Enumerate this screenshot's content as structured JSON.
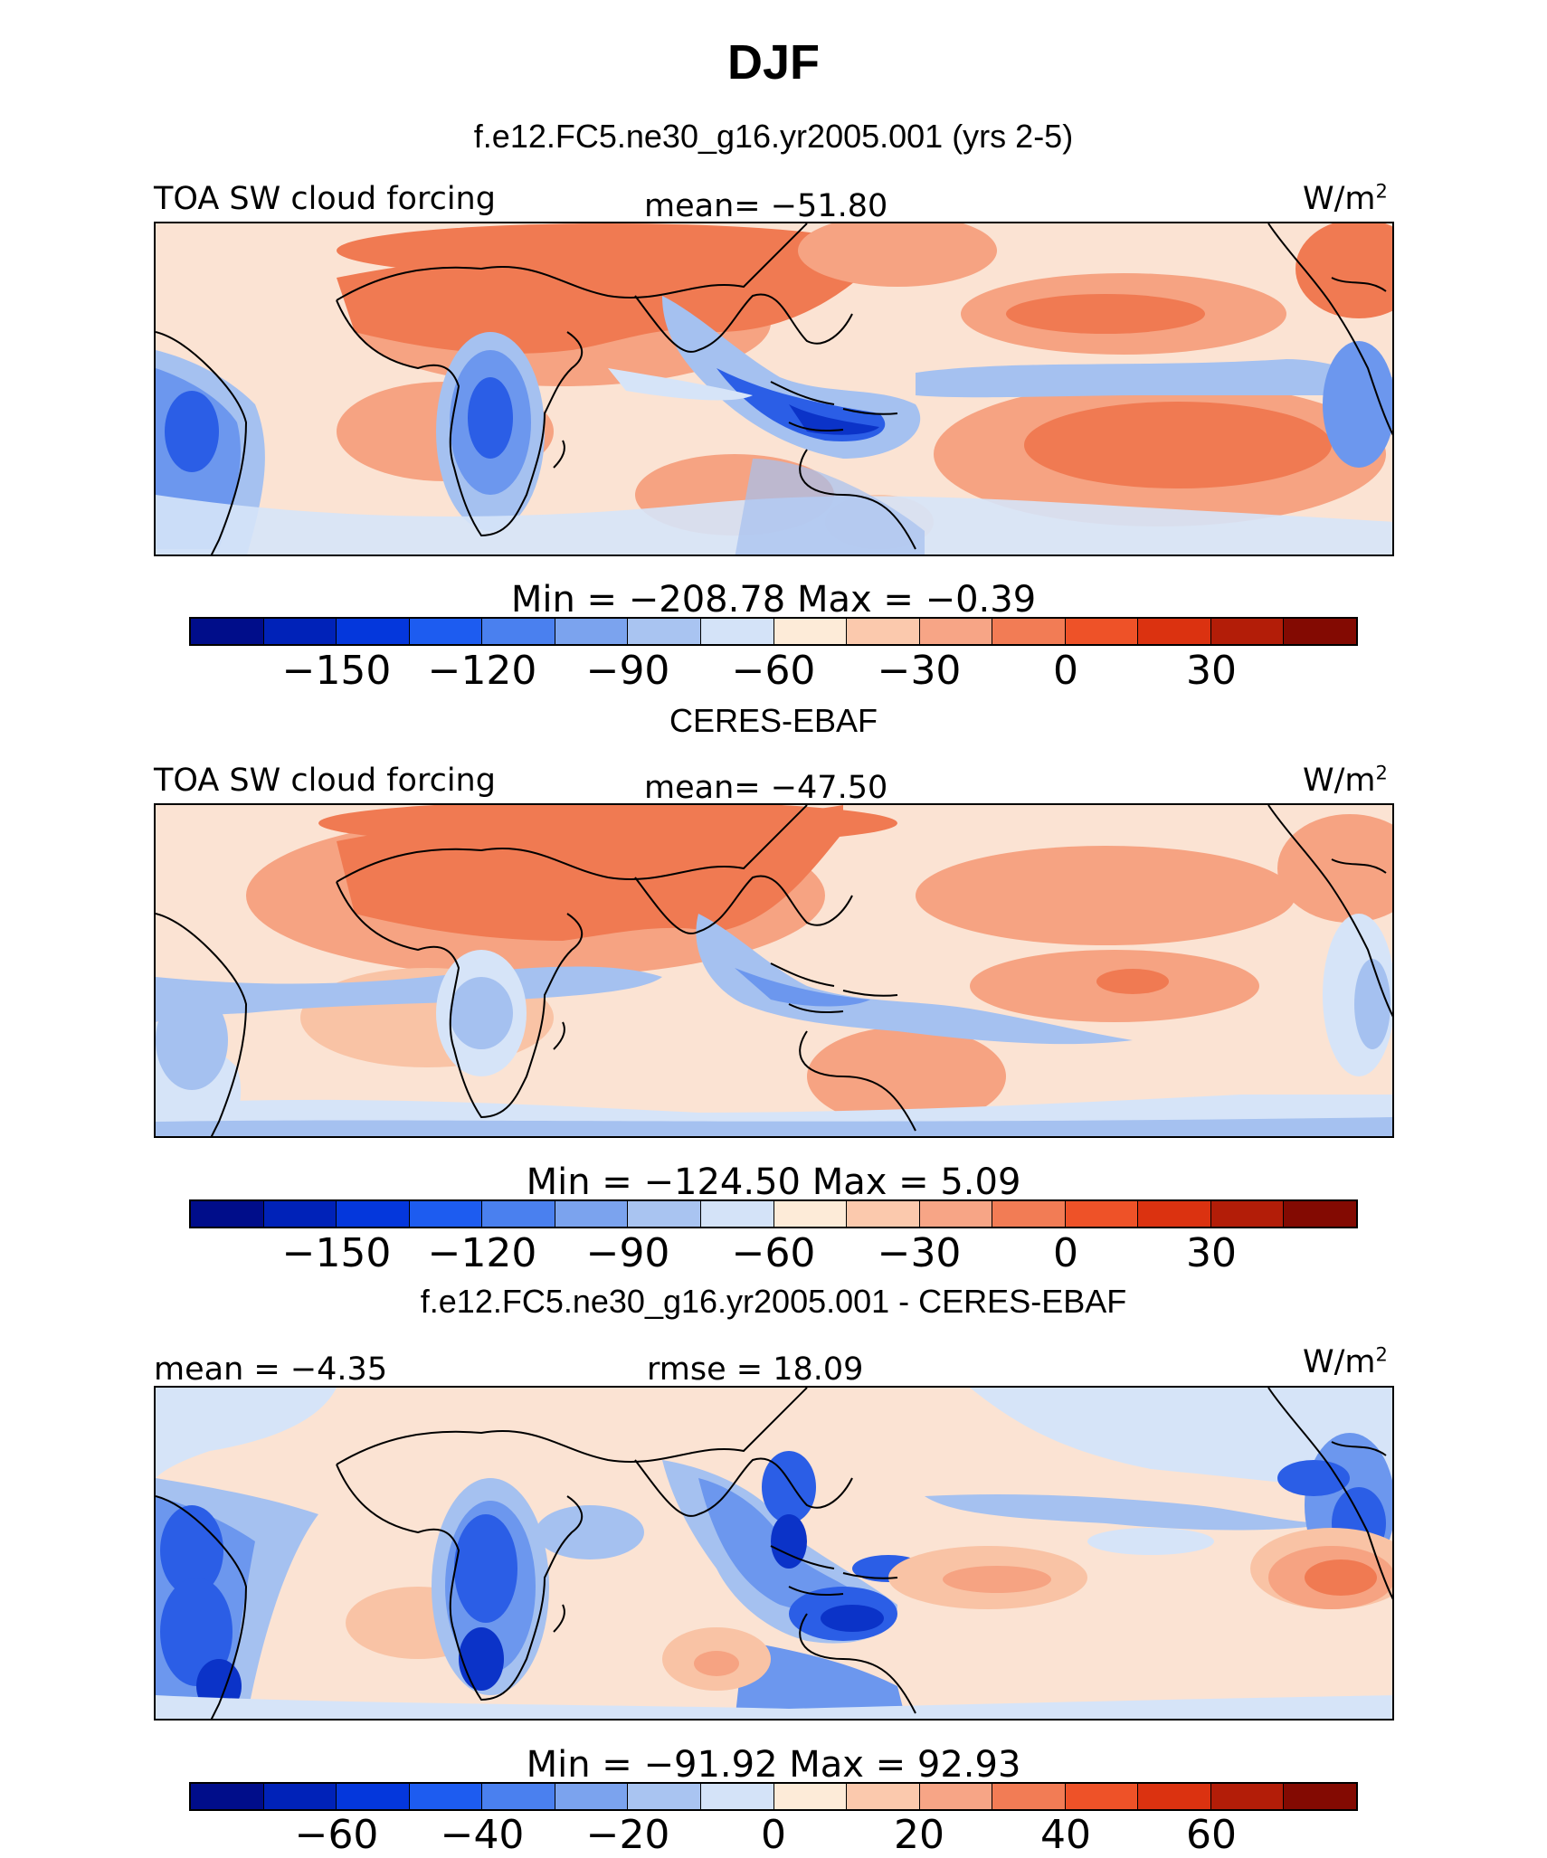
{
  "header": {
    "title": "DJF"
  },
  "panels": [
    {
      "title": "f.e12.FC5.ne30_g16.yr2005.001 (yrs 2-5)",
      "left_label": "TOA SW cloud forcing",
      "center_label": "mean= −51.80",
      "unit_base": "W/m",
      "unit_exp": "2",
      "minmax": "Min = −208.78 Max = −0.39",
      "colorbar_ticks": [
        "−150",
        "−120",
        "−90",
        "−60",
        "−30",
        "0",
        "30"
      ]
    },
    {
      "title": "CERES-EBAF",
      "left_label": "TOA SW cloud forcing",
      "center_label": "mean= −47.50",
      "unit_base": "W/m",
      "unit_exp": "2",
      "minmax": "Min = −124.50 Max = 5.09",
      "colorbar_ticks": [
        "−150",
        "−120",
        "−90",
        "−60",
        "−30",
        "0",
        "30"
      ]
    },
    {
      "title": "f.e12.FC5.ne30_g16.yr2005.001 - CERES-EBAF",
      "left_label": "mean = −4.35",
      "center_label": "rmse = 18.09",
      "unit_base": "W/m",
      "unit_exp": "2",
      "minmax": "Min = −91.92 Max = 92.93",
      "colorbar_ticks": [
        "−60",
        "−40",
        "−20",
        "0",
        "20",
        "40",
        "60"
      ]
    }
  ],
  "colorbar_colors": [
    "#000d8a",
    "#0022b8",
    "#0437dc",
    "#1d5cf0",
    "#4a80ef",
    "#7ba3ee",
    "#a9c4f1",
    "#d4e3f8",
    "#fdebd8",
    "#fbc9ad",
    "#f7a586",
    "#f27c55",
    "#ee5228",
    "#db3210",
    "#b31d08",
    "#830a02"
  ],
  "map_colors": {
    "background": "#fbe3d3",
    "light_red": "#f9c3a5",
    "mid_red": "#f6a382",
    "strong_red": "#f07a52",
    "light_blue": "#d6e4f8",
    "mid_blue": "#a5c1f0",
    "blue": "#6c97ee",
    "dark_blue": "#2b5ee6",
    "deep_blue": "#0b33c8"
  }
}
